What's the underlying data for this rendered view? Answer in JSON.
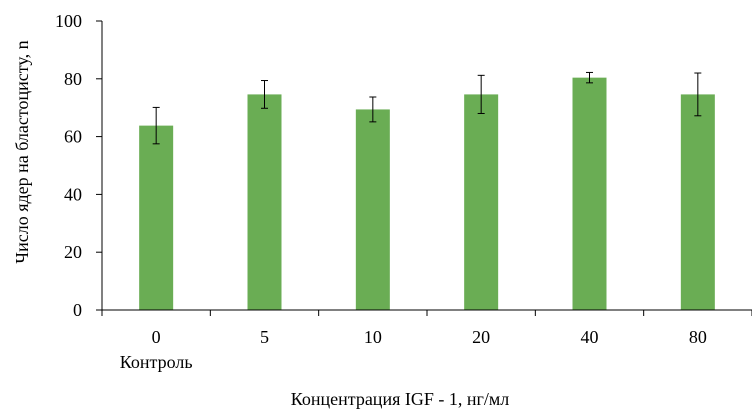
{
  "chart_data": {
    "type": "bar",
    "categories": [
      "0",
      "5",
      "10",
      "20",
      "40",
      "80"
    ],
    "category_sublabels": [
      "Контроль",
      "",
      "",
      "",
      "",
      ""
    ],
    "values": [
      63.8,
      74.6,
      69.4,
      74.6,
      80.4,
      74.6
    ],
    "error_bars": [
      6.3,
      4.8,
      4.3,
      6.6,
      1.8,
      7.4
    ],
    "xlabel": "Концентрация  IGF - 1, нг/мл",
    "ylabel": "Число ядер на бластоцисту, n",
    "ylim": [
      0,
      100
    ],
    "yticks": [
      "0",
      "20",
      "40",
      "60",
      "80",
      "100"
    ],
    "grid": false,
    "colors": {
      "bar": "#6aad54",
      "axis": "#000000",
      "error_bar": "#000000"
    }
  }
}
